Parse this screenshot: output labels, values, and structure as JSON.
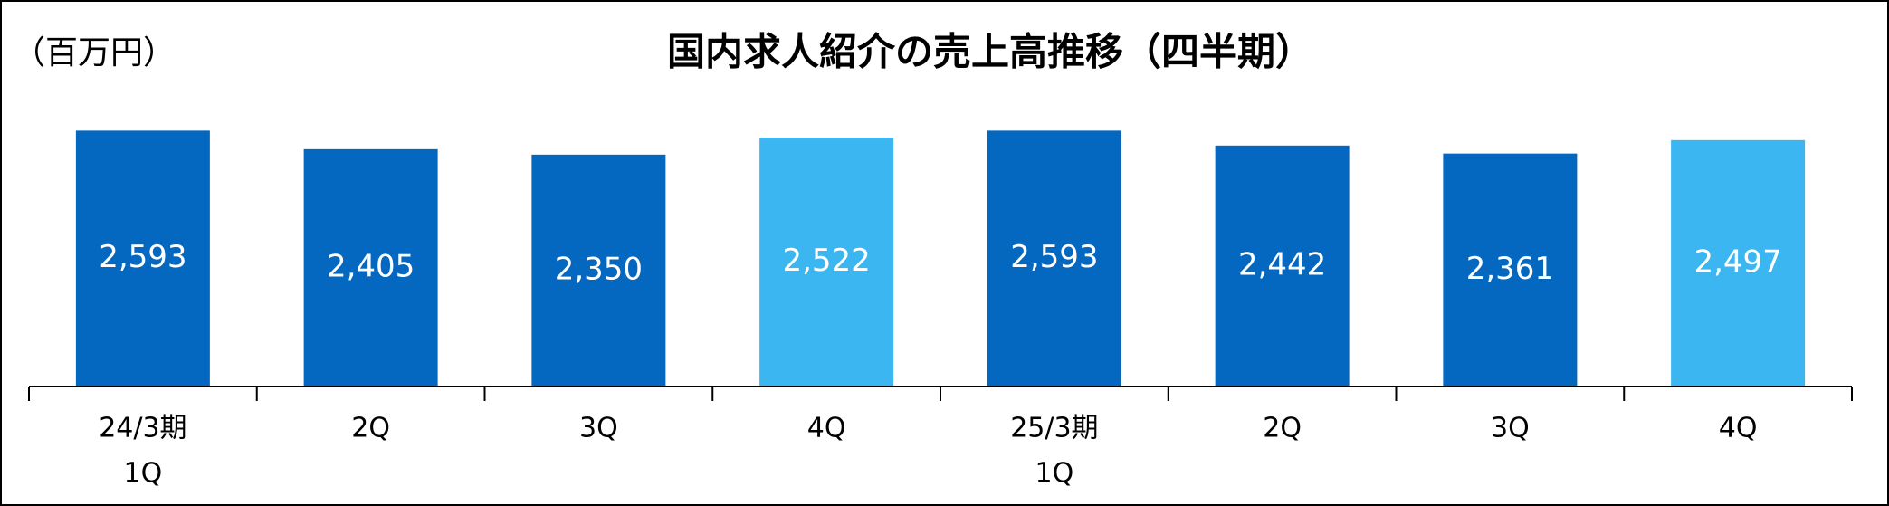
{
  "chart_data": {
    "type": "bar",
    "title": "国内求人紹介の売上高推移（四半期）",
    "unit_label": "（百万円）",
    "categories": [
      [
        "24/3期",
        "1Q"
      ],
      [
        "2Q"
      ],
      [
        "3Q"
      ],
      [
        "4Q"
      ],
      [
        "25/3期",
        "1Q"
      ],
      [
        "2Q"
      ],
      [
        "3Q"
      ],
      [
        "4Q"
      ]
    ],
    "values": [
      2593,
      2405,
      2350,
      2522,
      2593,
      2442,
      2361,
      2497
    ],
    "value_labels": [
      "2,593",
      "2,405",
      "2,350",
      "2,522",
      "2,593",
      "2,442",
      "2,361",
      "2,497"
    ],
    "colors": [
      "#0568c0",
      "#0568c0",
      "#0568c0",
      "#3bb6f0",
      "#0568c0",
      "#0568c0",
      "#0568c0",
      "#3bb6f0"
    ],
    "ylim": [
      0,
      3000
    ]
  }
}
